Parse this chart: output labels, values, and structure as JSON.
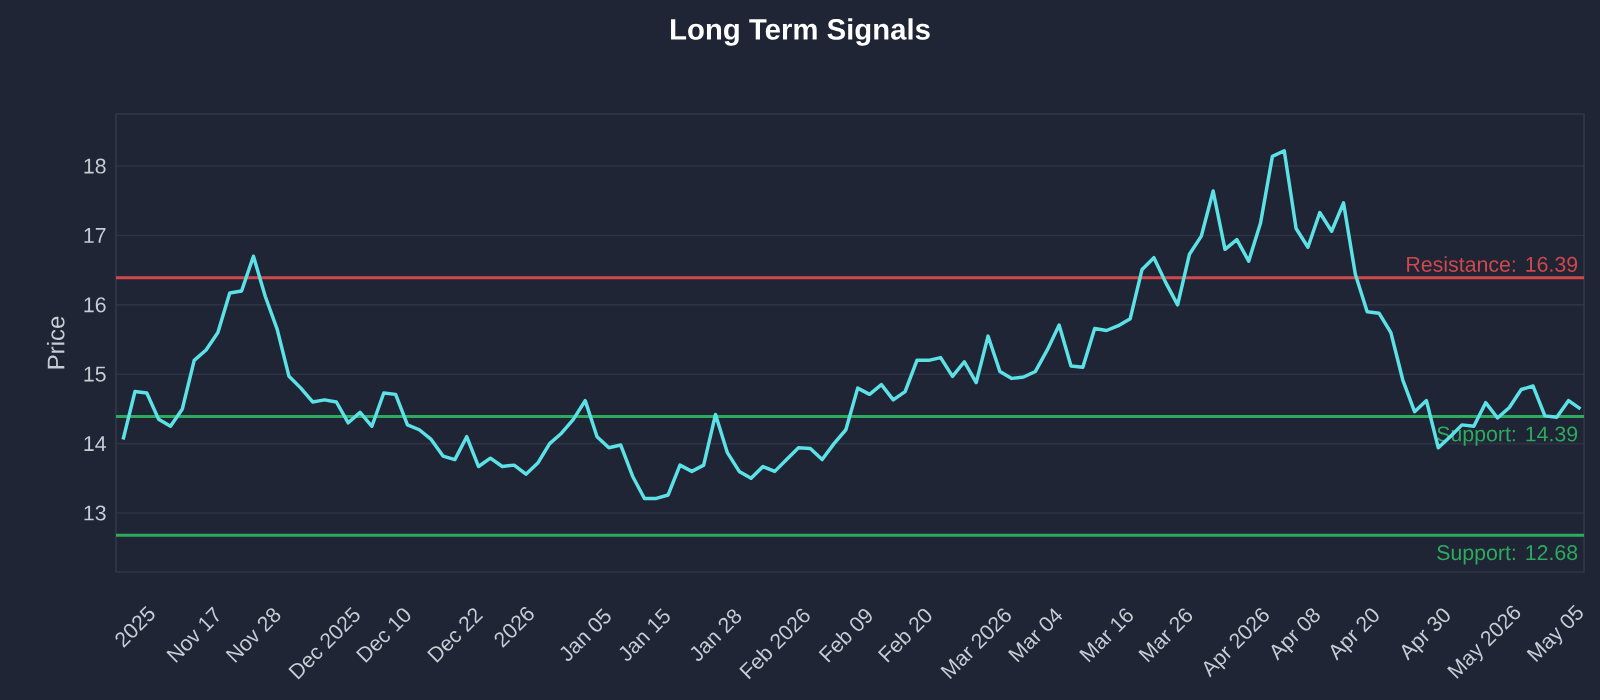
{
  "chart_data": {
    "type": "line",
    "title": "Long Term Signals",
    "ylabel": "Price",
    "categories": [
      null,
      "2025",
      null,
      null,
      null,
      null,
      "Nov 17",
      null,
      null,
      null,
      null,
      "Nov 28",
      null,
      null,
      null,
      null,
      null,
      "Dec 2025",
      null,
      null,
      null,
      null,
      "Dec 10",
      null,
      null,
      null,
      null,
      null,
      "Dec 22",
      null,
      null,
      null,
      null,
      "2026",
      null,
      null,
      null,
      null,
      null,
      "Jan 05",
      null,
      null,
      null,
      null,
      "Jan 15",
      null,
      null,
      null,
      null,
      null,
      "Jan 28",
      null,
      null,
      null,
      null,
      "Feb 2026",
      null,
      null,
      null,
      null,
      null,
      "Feb 09",
      null,
      null,
      null,
      null,
      "Feb 20",
      null,
      null,
      null,
      null,
      null,
      "Mar 2026",
      null,
      null,
      null,
      null,
      "Mar 04",
      null,
      null,
      null,
      null,
      null,
      "Mar 16",
      null,
      null,
      null,
      null,
      "Mar 26",
      null,
      null,
      null,
      null,
      null,
      "Apr 2026",
      null,
      null,
      null,
      null,
      "Apr 08",
      null,
      null,
      null,
      null,
      "Apr 20",
      null,
      null,
      null,
      null,
      null,
      "Apr 30",
      null,
      null,
      null,
      null,
      "May 2026",
      null,
      null,
      null,
      null,
      null,
      "May 05",
      null,
      null
    ],
    "series": [
      {
        "color": "#5ce1e6",
        "values": [
          14.06,
          14.75,
          14.73,
          14.35,
          14.25,
          14.5,
          15.2,
          15.35,
          15.6,
          16.17,
          16.2,
          16.7,
          16.12,
          15.65,
          14.97,
          14.8,
          14.6,
          14.63,
          14.6,
          14.3,
          14.45,
          14.25,
          14.73,
          14.71,
          14.27,
          14.2,
          14.06,
          13.82,
          13.77,
          14.1,
          13.67,
          13.79,
          13.67,
          13.69,
          13.56,
          13.72,
          14.0,
          14.15,
          14.35,
          14.62,
          14.1,
          13.94,
          13.98,
          13.53,
          13.21,
          13.21,
          13.26,
          13.69,
          13.6,
          13.69,
          14.42,
          13.87,
          13.6,
          13.5,
          13.67,
          13.6,
          13.77,
          13.94,
          13.93,
          13.77,
          14.0,
          14.2,
          14.8,
          14.71,
          14.85,
          14.63,
          14.75,
          15.2,
          15.2,
          15.24,
          14.97,
          15.18,
          14.88,
          15.55,
          15.04,
          14.94,
          14.96,
          15.04,
          15.35,
          15.71,
          15.12,
          15.1,
          15.66,
          15.63,
          15.7,
          15.8,
          16.51,
          16.68,
          16.32,
          16.0,
          16.73,
          16.99,
          17.64,
          16.8,
          16.94,
          16.63,
          17.18,
          18.14,
          18.22,
          17.1,
          16.83,
          17.33,
          17.06,
          17.47,
          16.44,
          15.9,
          15.88,
          15.6,
          14.92,
          14.46,
          14.62,
          13.94,
          14.1,
          14.27,
          14.25,
          14.59,
          14.37,
          14.52,
          14.78,
          14.83,
          14.4,
          14.38,
          14.62,
          14.5
        ]
      }
    ],
    "ylim": [
      12.15,
      18.75
    ],
    "yticks": [
      13,
      14,
      15,
      16,
      17,
      18
    ],
    "grid": "y",
    "ref_lines": [
      {
        "axis": "y",
        "value": 16.39,
        "label": "Resistance: 16.39",
        "color": "#d0484c"
      },
      {
        "axis": "y",
        "value": 14.39,
        "label": "Support: 14.39",
        "color": "#2eaa5e"
      },
      {
        "axis": "y",
        "value": 12.68,
        "label": "Support: 12.68",
        "color": "#2eaa5e"
      }
    ]
  }
}
